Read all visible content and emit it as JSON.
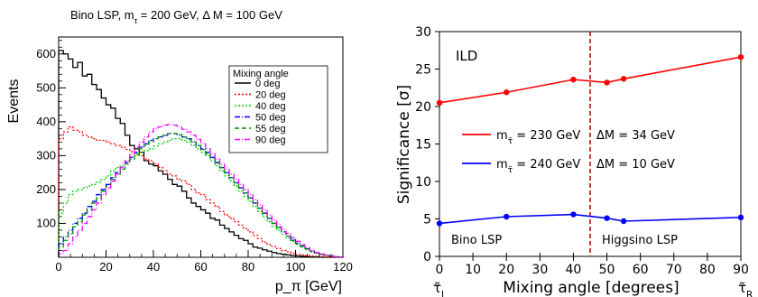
{
  "chart_data": [
    {
      "type": "line",
      "title": "Bino LSP, m_τ = 200 GeV, Δ M = 100 GeV",
      "xlabel": "p_π [GeV]",
      "ylabel": "Events",
      "xlim": [
        0,
        120
      ],
      "ylim": [
        0,
        650
      ],
      "x_ticks": [
        "0",
        "20",
        "40",
        "60",
        "80",
        "100",
        "120"
      ],
      "y_ticks": [
        "100",
        "200",
        "300",
        "400",
        "500",
        "600"
      ],
      "legend_title": "Mixing angle",
      "legend_position": "top-right",
      "bin_centers": [
        1,
        3,
        5,
        7,
        9,
        11,
        13,
        15,
        17,
        19,
        21,
        23,
        25,
        27,
        29,
        31,
        33,
        35,
        37,
        39,
        41,
        43,
        45,
        47,
        49,
        51,
        53,
        55,
        57,
        59,
        61,
        63,
        65,
        67,
        69,
        71,
        73,
        75,
        77,
        79,
        81,
        83,
        85,
        87,
        89,
        91,
        93,
        95,
        97,
        99,
        101,
        103,
        105,
        107,
        109,
        111,
        113,
        115,
        117,
        119
      ],
      "series": [
        {
          "name": "0 deg",
          "color": "#000000",
          "dash": "solid",
          "values": [
            610,
            600,
            585,
            560,
            575,
            535,
            540,
            510,
            495,
            470,
            450,
            440,
            410,
            395,
            360,
            330,
            320,
            310,
            285,
            275,
            270,
            255,
            245,
            230,
            215,
            210,
            195,
            175,
            160,
            150,
            140,
            130,
            115,
            110,
            95,
            85,
            75,
            65,
            55,
            50,
            40,
            30,
            27,
            22,
            18,
            14,
            11,
            9,
            7,
            5,
            4,
            3,
            2,
            1,
            1,
            0,
            0,
            0,
            0,
            0
          ]
        },
        {
          "name": "20 deg",
          "color": "#ff0000",
          "dash": "dotted",
          "values": [
            350,
            370,
            385,
            375,
            370,
            360,
            355,
            350,
            345,
            345,
            340,
            335,
            330,
            325,
            318,
            312,
            305,
            300,
            290,
            285,
            275,
            265,
            255,
            245,
            240,
            230,
            225,
            215,
            200,
            190,
            185,
            170,
            160,
            150,
            135,
            125,
            115,
            105,
            95,
            85,
            75,
            65,
            55,
            45,
            38,
            32,
            26,
            20,
            16,
            12,
            9,
            7,
            5,
            4,
            3,
            2,
            1,
            1,
            0,
            0
          ]
        },
        {
          "name": "40 deg",
          "color": "#00d000",
          "dash": "dotted",
          "values": [
            130,
            160,
            185,
            195,
            200,
            205,
            210,
            215,
            222,
            230,
            240,
            255,
            265,
            270,
            280,
            290,
            300,
            310,
            315,
            320,
            328,
            335,
            340,
            345,
            350,
            350,
            345,
            340,
            330,
            320,
            310,
            300,
            285,
            270,
            255,
            240,
            225,
            210,
            195,
            180,
            165,
            150,
            135,
            120,
            105,
            92,
            80,
            68,
            57,
            47,
            38,
            30,
            22,
            16,
            12,
            8,
            6,
            4,
            2,
            1
          ]
        },
        {
          "name": "50 deg",
          "color": "#0000ff",
          "dash": "dashdot",
          "values": [
            40,
            60,
            80,
            100,
            115,
            130,
            150,
            165,
            185,
            200,
            215,
            235,
            250,
            265,
            280,
            295,
            310,
            325,
            335,
            345,
            350,
            355,
            360,
            365,
            365,
            360,
            355,
            350,
            340,
            330,
            320,
            310,
            295,
            280,
            265,
            250,
            235,
            220,
            205,
            190,
            175,
            160,
            145,
            130,
            115,
            100,
            88,
            75,
            63,
            52,
            42,
            33,
            25,
            18,
            13,
            9,
            6,
            4,
            2,
            1
          ]
        },
        {
          "name": "55 deg",
          "color": "#009000",
          "dash": "dashed",
          "values": [
            30,
            50,
            70,
            90,
            105,
            125,
            140,
            160,
            175,
            195,
            210,
            230,
            245,
            260,
            275,
            290,
            305,
            320,
            330,
            340,
            350,
            355,
            360,
            365,
            365,
            362,
            355,
            348,
            340,
            330,
            318,
            305,
            292,
            278,
            264,
            250,
            235,
            220,
            205,
            190,
            175,
            160,
            145,
            130,
            115,
            100,
            88,
            75,
            62,
            50,
            40,
            32,
            25,
            18,
            13,
            9,
            6,
            4,
            2,
            1
          ]
        },
        {
          "name": "90 deg",
          "color": "#ff00ff",
          "dash": "dashdot",
          "values": [
            10,
            20,
            40,
            60,
            80,
            100,
            120,
            140,
            160,
            185,
            205,
            225,
            245,
            265,
            285,
            305,
            325,
            340,
            355,
            370,
            380,
            385,
            390,
            392,
            390,
            385,
            378,
            370,
            360,
            348,
            335,
            320,
            305,
            290,
            275,
            260,
            245,
            230,
            215,
            200,
            185,
            170,
            155,
            140,
            125,
            110,
            96,
            82,
            70,
            58,
            47,
            37,
            28,
            20,
            14,
            10,
            7,
            4,
            2,
            1
          ]
        }
      ]
    },
    {
      "type": "line",
      "xlabel": "Mixing angle [degrees]",
      "ylabel": "Significance [σ]",
      "xlim": [
        0,
        90
      ],
      "ylim": [
        0,
        30
      ],
      "x_ticks": [
        "0",
        "10",
        "20",
        "30",
        "40",
        "50",
        "60",
        "70",
        "80",
        "90"
      ],
      "y_ticks": [
        "0",
        "5",
        "10",
        "15",
        "20",
        "25",
        "30"
      ],
      "x_end_labels": {
        "left": "τ̃_L",
        "right": "τ̃_R"
      },
      "annotations": [
        "ILD",
        "Bino LSP",
        "Higgsino LSP"
      ],
      "vline": {
        "x": 45,
        "color": "#a00000",
        "style": "dashed"
      },
      "series": [
        {
          "name": "m_τ̃ = 230 GeV",
          "delta_label": "ΔM = 34 GeV",
          "color": "#ff0000",
          "x": [
            0,
            20,
            40,
            50,
            55,
            90
          ],
          "y": [
            20.5,
            21.9,
            23.6,
            23.2,
            23.7,
            26.6
          ]
        },
        {
          "name": "m_τ̃ = 240 GeV",
          "delta_label": "ΔM = 10 GeV",
          "color": "#0000ff",
          "x": [
            0,
            20,
            40,
            50,
            55,
            90
          ],
          "y": [
            4.4,
            5.3,
            5.6,
            5.1,
            4.7,
            5.2
          ]
        }
      ]
    }
  ]
}
